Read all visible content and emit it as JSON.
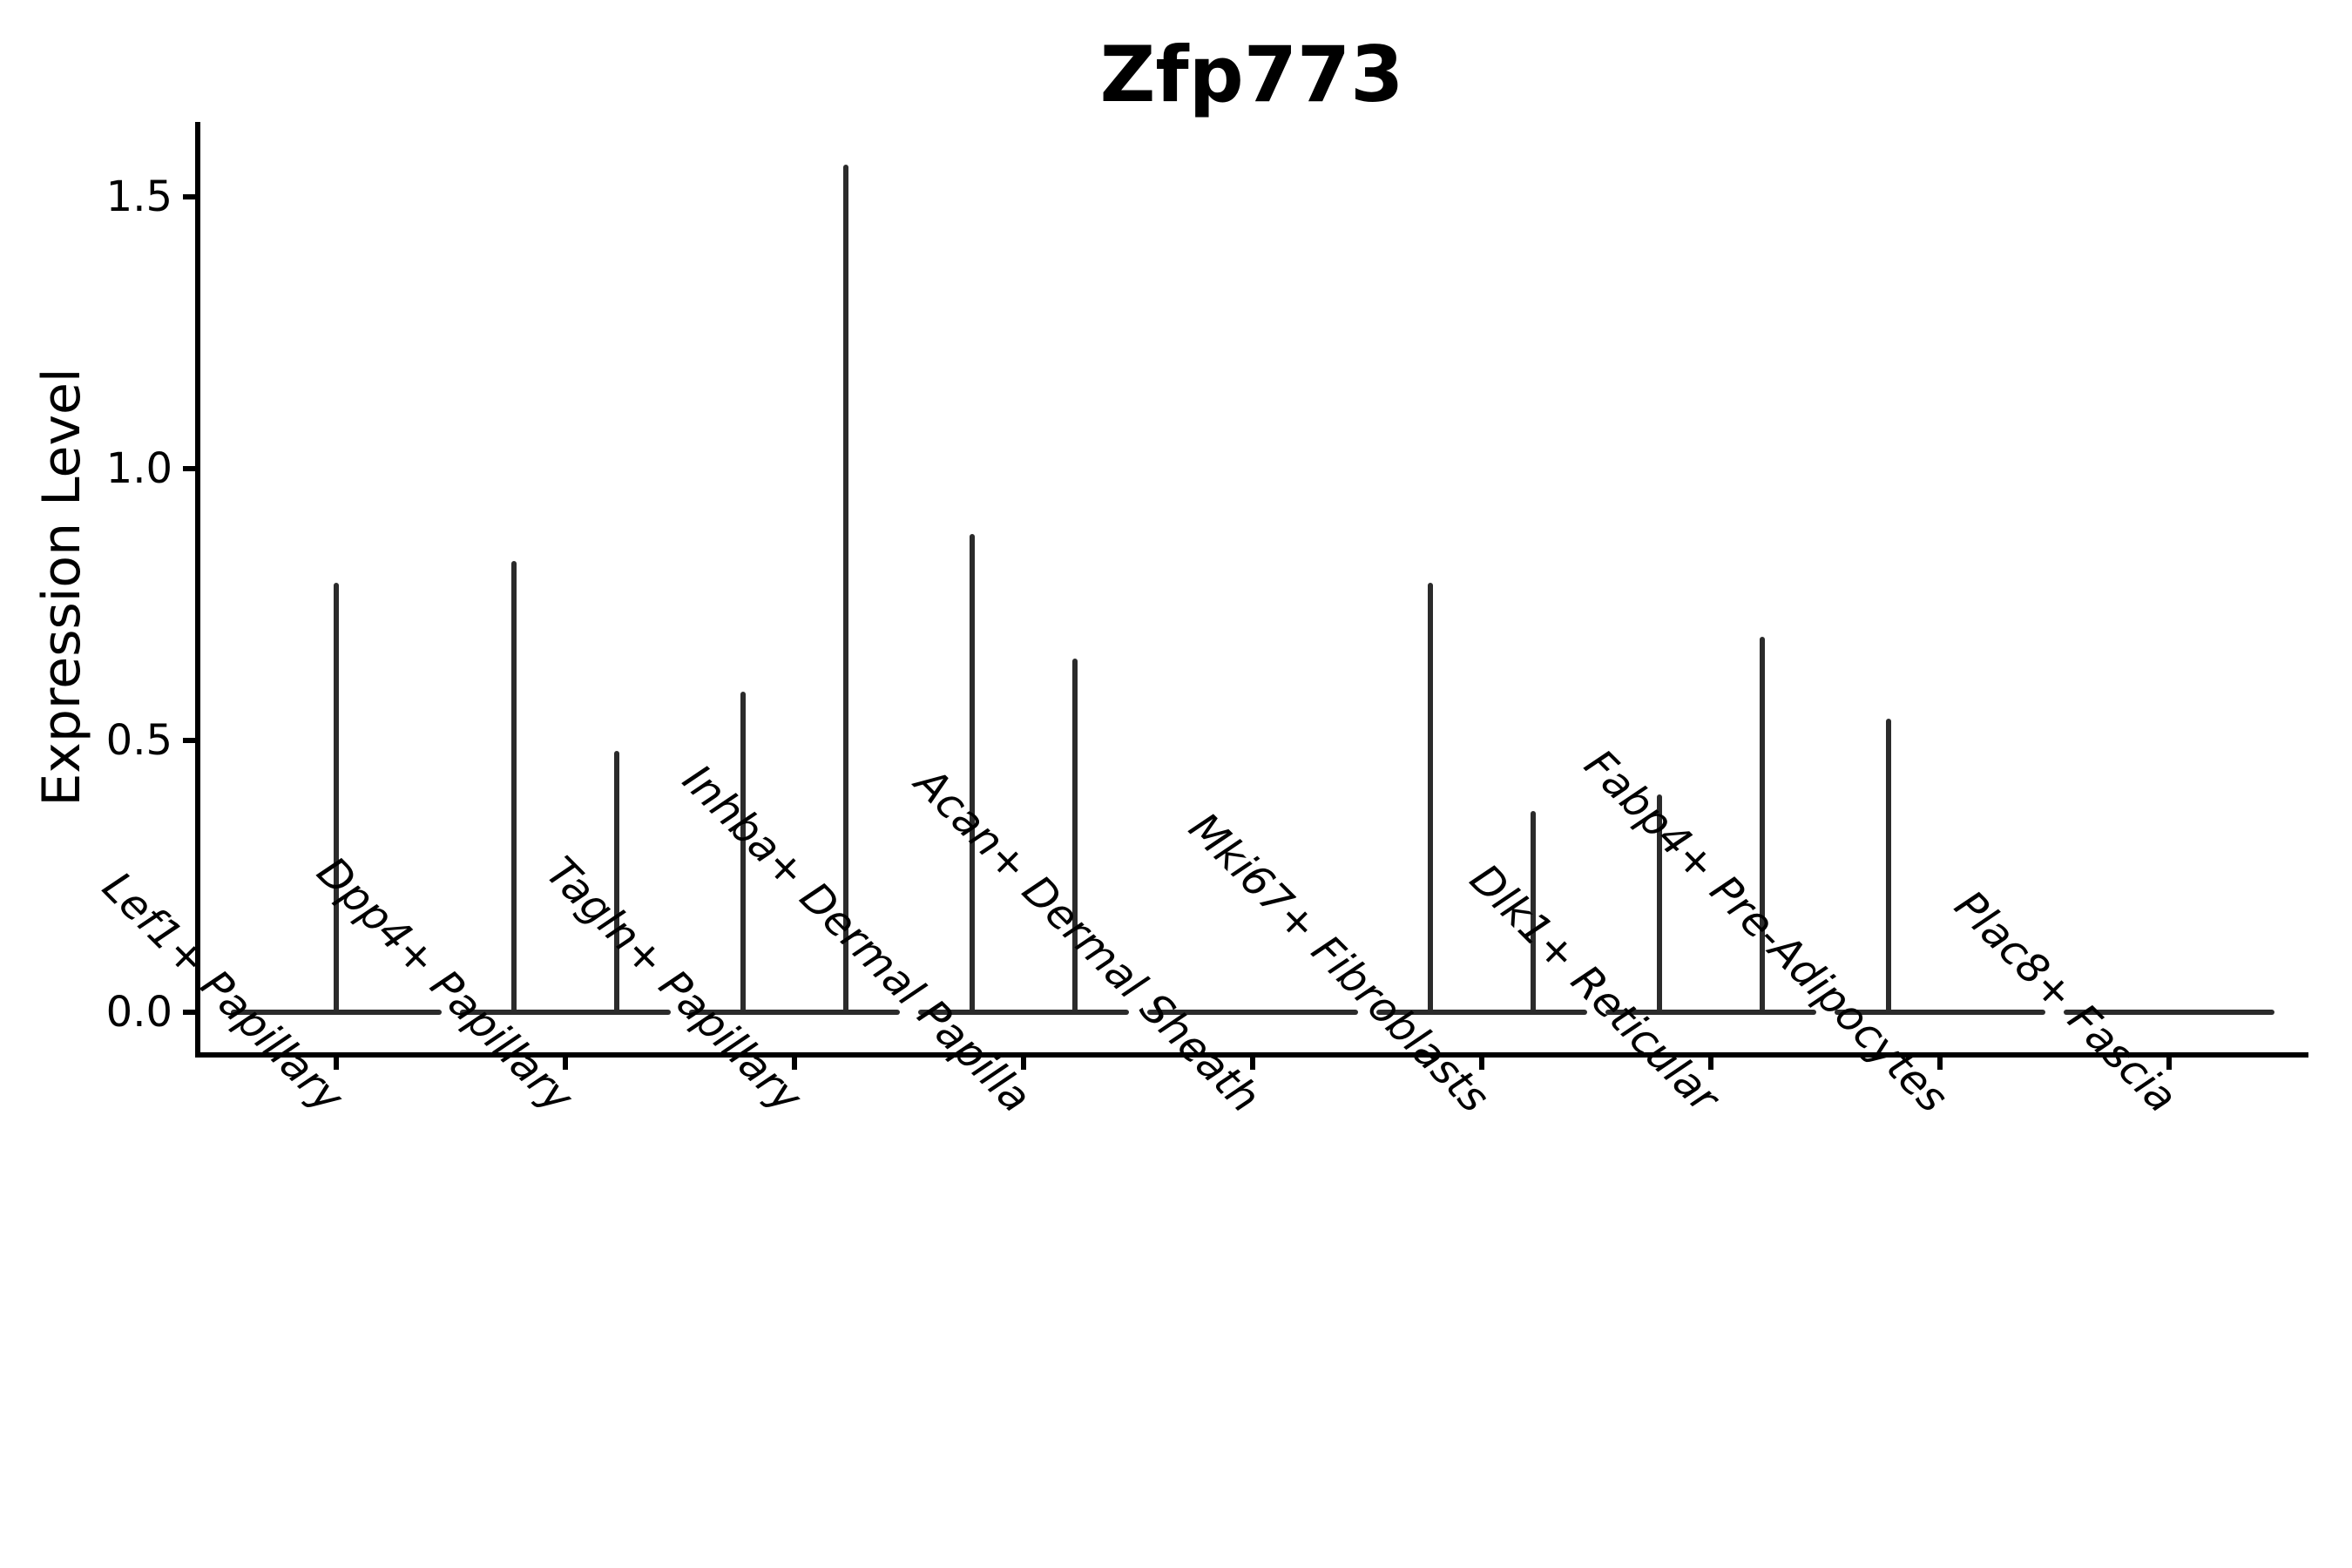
{
  "title": "Zfp773",
  "chart_data": {
    "type": "violin",
    "title": "Zfp773",
    "ylabel": "Expression Level",
    "xlabel": "",
    "yticks": [
      "0.0",
      "0.5",
      "1.0",
      "1.5"
    ],
    "ytick_values": [
      0.0,
      0.5,
      1.0,
      1.5
    ],
    "ylim": [
      -0.08,
      1.66
    ],
    "grid": false,
    "legend": null,
    "categories": [
      "Lef1+ Papillary",
      "Dpp4+ Papillary",
      "Tagln+ Papillary",
      "Inhba+ Dermal Papilla",
      "Acan+ Dermal Sheath",
      "Mki67+ Fibroblasts",
      "Dlk1+ Reticular",
      "Fabp4+ Pre-Adipocytes",
      "Plac8+ Fascia"
    ],
    "violins": [
      {
        "category": "Lef1+ Papillary",
        "spikes": [
          {
            "pos": "center",
            "max": 0.79
          }
        ]
      },
      {
        "category": "Dpp4+ Papillary",
        "spikes": [
          {
            "pos": "left",
            "max": 0.83
          },
          {
            "pos": "right",
            "max": 0.48
          }
        ]
      },
      {
        "category": "Tagln+ Papillary",
        "spikes": [
          {
            "pos": "left",
            "max": 0.59
          },
          {
            "pos": "right",
            "max": 1.56
          }
        ]
      },
      {
        "category": "Inhba+ Dermal Papilla",
        "spikes": [
          {
            "pos": "left",
            "max": 0.88
          },
          {
            "pos": "right",
            "max": 0.65
          }
        ]
      },
      {
        "category": "Acan+ Dermal Sheath",
        "spikes": []
      },
      {
        "category": "Mki67+ Fibroblasts",
        "spikes": [
          {
            "pos": "left",
            "max": 0.79
          },
          {
            "pos": "right",
            "max": 0.37
          }
        ]
      },
      {
        "category": "Dlk1+ Reticular",
        "spikes": [
          {
            "pos": "left",
            "max": 0.4
          },
          {
            "pos": "right",
            "max": 0.69
          }
        ]
      },
      {
        "category": "Fabp4+ Pre-Adipocytes",
        "spikes": [
          {
            "pos": "left",
            "max": 0.54
          }
        ]
      },
      {
        "category": "Plac8+ Fascia",
        "spikes": []
      }
    ],
    "description": "Violin plot of expression level; flat baseline violins at 0 with thin density spikes up to max expression"
  }
}
